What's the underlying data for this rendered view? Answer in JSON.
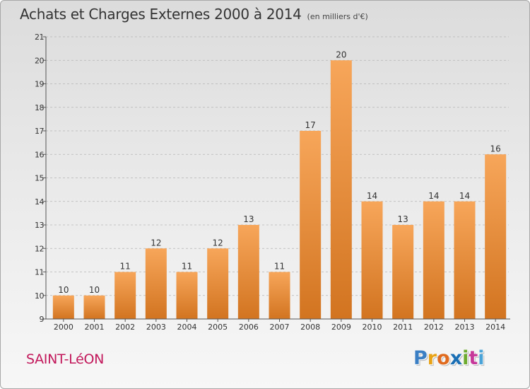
{
  "title": "Achats et Charges Externes 2000 à 2014",
  "subtitle": "(en milliers d'€)",
  "commune": "SAINT-LéON",
  "logo": {
    "letters": [
      "P",
      "r",
      "o",
      "x",
      "i",
      "t",
      "i"
    ],
    "colors": [
      "#3b7fc4",
      "#e8a317",
      "#e06b1f",
      "#1a6fb5",
      "#6dab2e",
      "#c7389a",
      "#4aa3d8"
    ]
  },
  "colors": {
    "bar_top": "#f7a65a",
    "bar_bottom": "#d27420",
    "axis": "#555555",
    "grid": "#b5b5b5"
  },
  "chart_data": {
    "type": "bar",
    "title": "Achats et Charges Externes 2000 à 2014",
    "subtitle": "(en milliers d'€)",
    "categories": [
      "2000",
      "2001",
      "2002",
      "2003",
      "2004",
      "2005",
      "2006",
      "2007",
      "2008",
      "2009",
      "2010",
      "2011",
      "2012",
      "2013",
      "2014"
    ],
    "values": [
      10,
      10,
      11,
      12,
      11,
      12,
      13,
      11,
      17,
      20,
      14,
      13,
      14,
      14,
      16
    ],
    "ylim": [
      9,
      21
    ],
    "yticks": [
      9,
      10,
      11,
      12,
      13,
      14,
      15,
      16,
      17,
      18,
      19,
      20,
      21
    ],
    "grid": true,
    "xlabel": "",
    "ylabel": ""
  }
}
